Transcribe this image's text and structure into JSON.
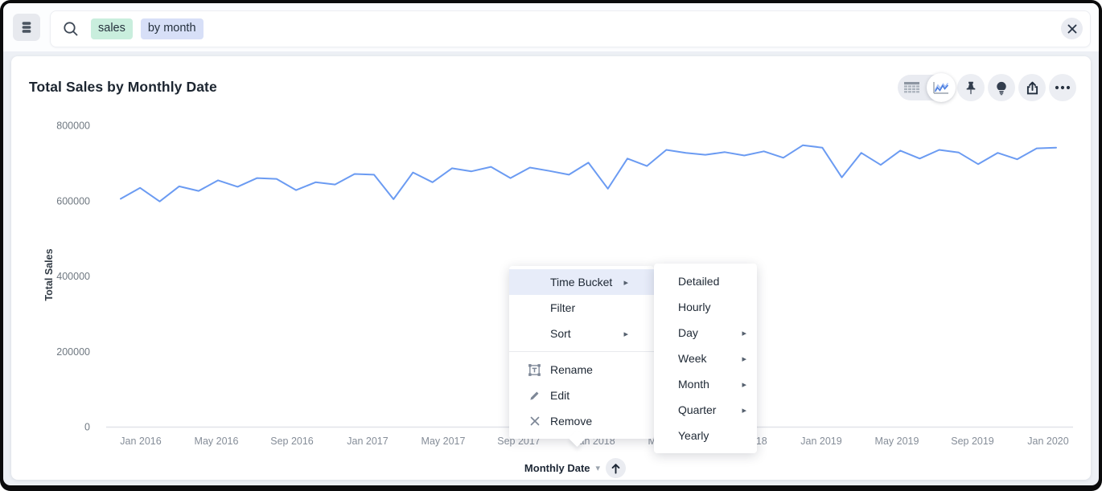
{
  "topbar": {
    "datasource_button": {
      "icon": "database-icon"
    },
    "search": {
      "icon": "search-icon",
      "tokens": [
        {
          "text": "sales",
          "type": "measure",
          "bg": "#c9eedd"
        },
        {
          "text": "by month",
          "type": "attribute",
          "bg": "#d7dff7"
        }
      ],
      "clear_icon": "close-icon"
    }
  },
  "answer": {
    "title": "Total Sales by Monthly Date",
    "toolbar": {
      "view_toggle": [
        {
          "icon": "table-view-icon",
          "selected": false
        },
        {
          "icon": "chart-view-icon",
          "selected": true
        }
      ],
      "buttons": [
        {
          "icon": "pin-icon"
        },
        {
          "icon": "insights-bulb-icon"
        },
        {
          "icon": "share-icon"
        },
        {
          "icon": "more-options-icon"
        }
      ]
    }
  },
  "chart_data": {
    "type": "line",
    "title": "Total Sales by Monthly Date",
    "xlabel": "Monthly Date",
    "ylabel": "Total Sales",
    "x": [
      "Jan 2016",
      "Feb 2016",
      "Mar 2016",
      "Apr 2016",
      "May 2016",
      "Jun 2016",
      "Jul 2016",
      "Aug 2016",
      "Sep 2016",
      "Oct 2016",
      "Nov 2016",
      "Dec 2016",
      "Jan 2017",
      "Feb 2017",
      "Mar 2017",
      "Apr 2017",
      "May 2017",
      "Jun 2017",
      "Jul 2017",
      "Aug 2017",
      "Sep 2017",
      "Oct 2017",
      "Nov 2017",
      "Dec 2017",
      "Jan 2018",
      "Feb 2018",
      "Mar 2018",
      "Apr 2018",
      "May 2018",
      "Jun 2018",
      "Jul 2018",
      "Aug 2018",
      "Sep 2018",
      "Oct 2018",
      "Nov 2018",
      "Dec 2018",
      "Jan 2019",
      "Feb 2019",
      "Mar 2019",
      "Apr 2019",
      "May 2019",
      "Jun 2019",
      "Jul 2019",
      "Aug 2019",
      "Sep 2019",
      "Oct 2019",
      "Nov 2019",
      "Dec 2019",
      "Jan 2020"
    ],
    "values": [
      605000,
      634000,
      598000,
      638000,
      626000,
      654000,
      637000,
      660000,
      658000,
      628000,
      649000,
      643000,
      671000,
      669000,
      604000,
      675000,
      649000,
      686000,
      678000,
      690000,
      660000,
      688000,
      679000,
      669000,
      701000,
      632000,
      712000,
      692000,
      735000,
      727000,
      722000,
      729000,
      720000,
      731000,
      714000,
      747000,
      741000,
      662000,
      727000,
      695000,
      733000,
      712000,
      735000,
      728000,
      697000,
      727000,
      710000,
      739000,
      741000
    ],
    "x_tick_labels": [
      "Jan 2016",
      "May 2016",
      "Sep 2016",
      "Jan 2017",
      "May 2017",
      "Sep 2017",
      "Jan 2018",
      "May 2018",
      "Sep 2018",
      "Jan 2019",
      "May 2019",
      "Sep 2019",
      "Jan 2020"
    ],
    "y_ticks": [
      0,
      200000,
      400000,
      600000,
      800000
    ],
    "ylim": [
      0,
      800000
    ],
    "line_color": "#6b9bf2",
    "grid": false,
    "legend": false
  },
  "axis_control": {
    "label": "Monthly Date",
    "dropdown_icon": "chevron-down-icon",
    "sort_icon": "sort-ascending-arrow-icon",
    "caret_glyph": "▾"
  },
  "context_menu": {
    "items": [
      {
        "label": "Time Bucket",
        "submenu": true,
        "highlighted": true
      },
      {
        "label": "Filter",
        "submenu": false,
        "highlighted": false
      },
      {
        "label": "Sort",
        "submenu": true,
        "highlighted": false
      }
    ],
    "actions": [
      {
        "label": "Rename",
        "icon": "rename-icon"
      },
      {
        "label": "Edit",
        "icon": "edit-pencil-icon"
      },
      {
        "label": "Remove",
        "icon": "remove-x-icon"
      }
    ],
    "submenu_arrow_glyph": "▸"
  },
  "time_bucket_submenu": {
    "items": [
      {
        "label": "Detailed",
        "submenu": false
      },
      {
        "label": "Hourly",
        "submenu": false
      },
      {
        "label": "Day",
        "submenu": true
      },
      {
        "label": "Week",
        "submenu": true
      },
      {
        "label": "Month",
        "submenu": true
      },
      {
        "label": "Quarter",
        "submenu": true
      },
      {
        "label": "Yearly",
        "submenu": false
      }
    ]
  },
  "colors": {
    "line": "#6b9bf2",
    "menu_highlight": "#e7ecf9",
    "axis_line": "#e1e4e9",
    "tick_text": "#858d98",
    "ytick_text": "#6f7881"
  }
}
